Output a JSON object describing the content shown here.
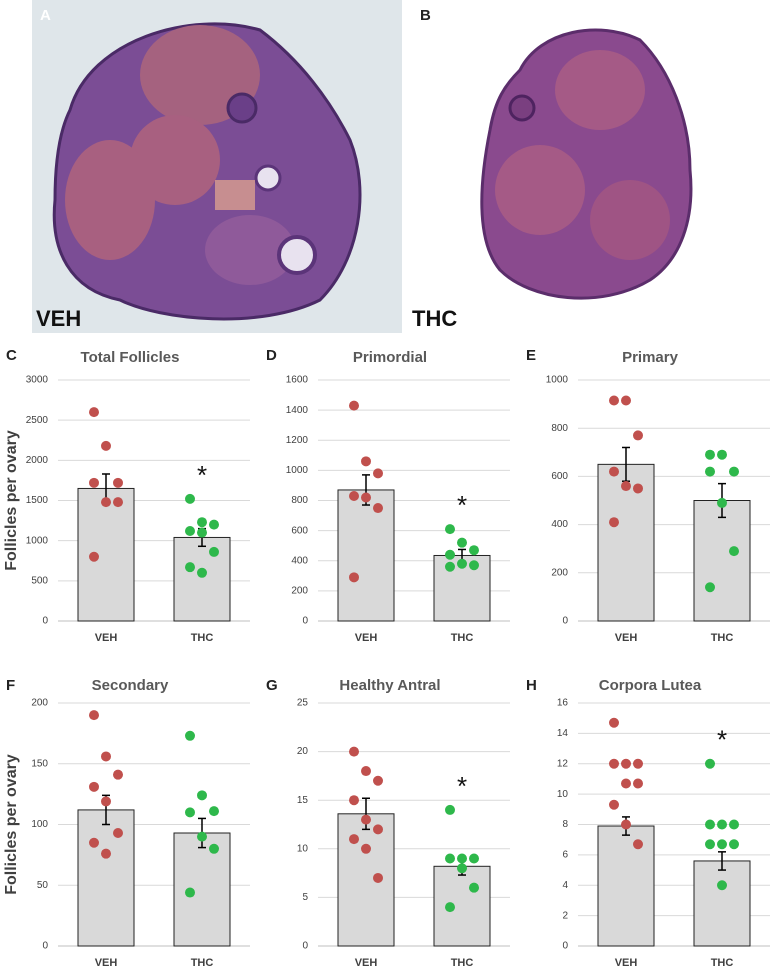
{
  "images": [
    {
      "letter": "A",
      "label": "VEH"
    },
    {
      "letter": "B",
      "label": "THC"
    }
  ],
  "chart_data": [
    {
      "type": "bar",
      "panel": "C",
      "title": "Total Follicles",
      "ylabel": "Follicles per ovary",
      "categories": [
        "VEH",
        "THC"
      ],
      "values": [
        1650,
        1040
      ],
      "errors": [
        180,
        110
      ],
      "points": [
        [
          2600,
          2180,
          1720,
          1720,
          1480,
          1480,
          800
        ],
        [
          1520,
          1230,
          1200,
          1120,
          1100,
          860,
          670,
          600
        ]
      ],
      "point_colors": [
        "#c0504d",
        "#2eb84b"
      ],
      "bar_color": "#d9d9d9",
      "significance": [
        null,
        "*"
      ],
      "ylim": [
        0,
        3000
      ],
      "yticks": [
        0,
        500,
        1000,
        1500,
        2000,
        2500,
        3000
      ],
      "grid": true
    },
    {
      "type": "bar",
      "panel": "D",
      "title": "Primordial",
      "categories": [
        "VEH",
        "THC"
      ],
      "values": [
        870,
        435
      ],
      "errors": [
        100,
        40
      ],
      "points": [
        [
          1430,
          1060,
          980,
          830,
          820,
          750,
          290
        ],
        [
          610,
          520,
          470,
          440,
          380,
          370,
          360
        ]
      ],
      "point_colors": [
        "#c0504d",
        "#2eb84b"
      ],
      "bar_color": "#d9d9d9",
      "significance": [
        null,
        "*"
      ],
      "ylim": [
        0,
        1600
      ],
      "yticks": [
        0,
        200,
        400,
        600,
        800,
        1000,
        1200,
        1400,
        1600
      ],
      "grid": true
    },
    {
      "type": "bar",
      "panel": "E",
      "title": "Primary",
      "categories": [
        "VEH",
        "THC"
      ],
      "values": [
        650,
        500
      ],
      "errors": [
        70,
        70
      ],
      "points": [
        [
          915,
          915,
          770,
          620,
          560,
          550,
          410
        ],
        [
          690,
          690,
          620,
          620,
          490,
          290,
          140
        ]
      ],
      "point_colors": [
        "#c0504d",
        "#2eb84b"
      ],
      "bar_color": "#d9d9d9",
      "significance": [
        null,
        null
      ],
      "ylim": [
        0,
        1000
      ],
      "yticks": [
        0,
        200,
        400,
        600,
        800,
        1000
      ],
      "grid": true
    },
    {
      "type": "bar",
      "panel": "F",
      "title": "Secondary",
      "ylabel": "Follicles per ovary",
      "categories": [
        "VEH",
        "THC"
      ],
      "values": [
        112,
        93
      ],
      "errors": [
        12,
        12
      ],
      "points": [
        [
          190,
          156,
          141,
          131,
          119,
          93,
          85,
          76
        ],
        [
          173,
          124,
          111,
          110,
          90,
          80,
          44
        ]
      ],
      "point_colors": [
        "#c0504d",
        "#2eb84b"
      ],
      "bar_color": "#d9d9d9",
      "significance": [
        null,
        null
      ],
      "ylim": [
        0,
        200
      ],
      "yticks": [
        0,
        50,
        100,
        150,
        200
      ],
      "grid": true
    },
    {
      "type": "bar",
      "panel": "G",
      "title": "Healthy Antral",
      "categories": [
        "VEH",
        "THC"
      ],
      "values": [
        13.6,
        8.2
      ],
      "errors": [
        1.6,
        0.9
      ],
      "points": [
        [
          20,
          18,
          17,
          15,
          13,
          12,
          11,
          10,
          7
        ],
        [
          14,
          9,
          9,
          9,
          8,
          6,
          4
        ]
      ],
      "point_colors": [
        "#c0504d",
        "#2eb84b"
      ],
      "bar_color": "#d9d9d9",
      "significance": [
        null,
        "*"
      ],
      "ylim": [
        0,
        25
      ],
      "yticks": [
        0,
        5,
        10,
        15,
        20,
        25
      ],
      "grid": true
    },
    {
      "type": "bar",
      "panel": "H",
      "title": "Corpora Lutea",
      "categories": [
        "VEH",
        "THC"
      ],
      "values": [
        7.9,
        5.6
      ],
      "errors": [
        0.6,
        0.6
      ],
      "points": [
        [
          14.7,
          12,
          12,
          12,
          10.7,
          10.7,
          9.3,
          8,
          6.7
        ],
        [
          12,
          8,
          8,
          8,
          6.7,
          6.7,
          6.7,
          4
        ]
      ],
      "point_colors": [
        "#c0504d",
        "#2eb84b"
      ],
      "bar_color": "#d9d9d9",
      "significance": [
        null,
        "*"
      ],
      "ylim": [
        0,
        16
      ],
      "yticks": [
        0,
        2,
        4,
        6,
        8,
        10,
        12,
        14,
        16
      ],
      "grid": true
    }
  ]
}
